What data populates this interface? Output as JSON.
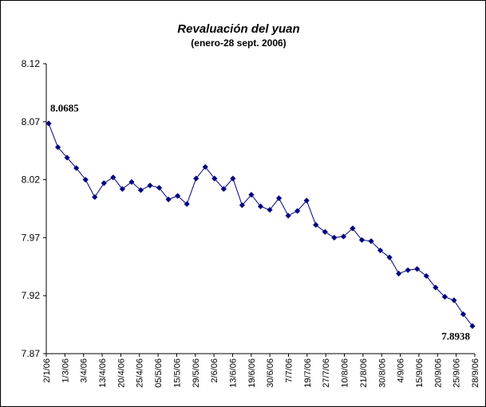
{
  "chart_data": {
    "type": "line",
    "title": "Revaluación del yuan",
    "subtitle": "(enero-28 sept. 2006)",
    "xlabel": "",
    "ylabel": "",
    "ylim": [
      7.87,
      8.12
    ],
    "y_ticks": [
      "8.12",
      "8.07",
      "8.02",
      "7.97",
      "7.92",
      "7.87"
    ],
    "x_tick_labels": [
      "2/1/06",
      "1/3/06",
      "3/4/06",
      "13/4/06",
      "20/4/06",
      "25/4/06",
      "05/5/06",
      "15/5/06",
      "29/5/06",
      "2/6/06",
      "13/6/06",
      "19/6/06",
      "30/6/06",
      "7/7/06",
      "19/7/06",
      "27/7/06",
      "10/8/06",
      "21/8/06",
      "30/8/06",
      "4/9/06",
      "15/9/06",
      "20/9/06",
      "25/9/06",
      "28/9/06"
    ],
    "grid": false,
    "legend": "none",
    "line_color": "#000080",
    "marker_color": "#000080",
    "series": [
      {
        "values": [
          8.0685,
          8.048,
          8.039,
          8.03,
          8.02,
          8.005,
          8.017,
          8.022,
          8.012,
          8.018,
          8.011,
          8.015,
          8.013,
          8.003,
          8.006,
          7.999,
          8.021,
          8.031,
          8.021,
          8.012,
          8.021,
          7.998,
          8.007,
          7.997,
          7.994,
          8.004,
          7.989,
          7.993,
          8.002,
          7.981,
          7.975,
          7.97,
          7.971,
          7.978,
          7.968,
          7.967,
          7.959,
          7.953,
          7.939,
          7.942,
          7.943,
          7.937,
          7.927,
          7.919,
          7.916,
          7.904,
          7.8938
        ]
      }
    ],
    "data_labels": [
      {
        "index": 0,
        "text": "8.0685"
      },
      {
        "index": 46,
        "text": "7.8938"
      }
    ]
  }
}
